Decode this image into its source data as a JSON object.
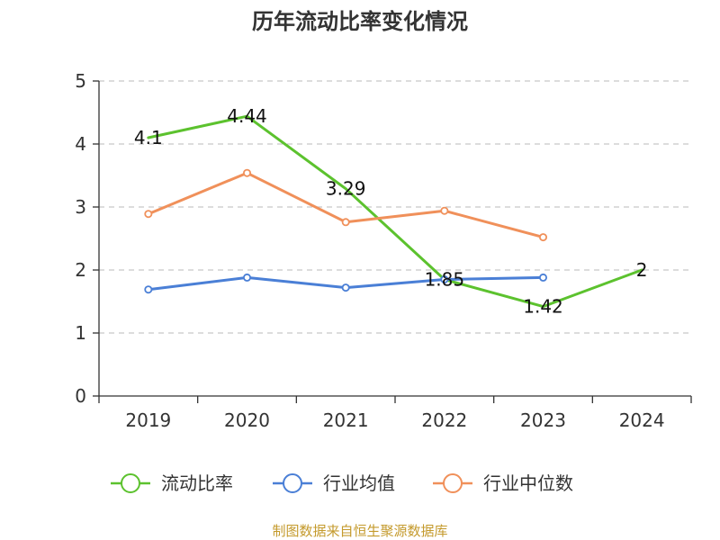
{
  "chart_data": {
    "type": "line",
    "title": "历年流动比率变化情况",
    "categories": [
      "2019",
      "2020",
      "2021",
      "2022",
      "2023",
      "2024"
    ],
    "ylim": [
      0,
      5
    ],
    "yticks": [
      0,
      1,
      2,
      3,
      4,
      5
    ],
    "xlabel": "",
    "ylabel": "",
    "grid": true,
    "legend_position": "bottom",
    "series": [
      {
        "name": "流动比率",
        "color": "#5cc22e",
        "values": [
          4.1,
          4.44,
          3.29,
          1.85,
          1.42,
          2
        ],
        "labels": [
          "4.1",
          "4.44",
          "3.29",
          "1.85",
          "1.42",
          "2"
        ],
        "show_markers": false,
        "show_labels": true
      },
      {
        "name": "行业均值",
        "color": "#4a7fd6",
        "values": [
          1.69,
          1.88,
          1.72,
          1.85,
          1.88,
          null
        ],
        "show_markers": true,
        "show_labels": false
      },
      {
        "name": "行业中位数",
        "color": "#f0905a",
        "values": [
          2.89,
          3.54,
          2.76,
          2.94,
          2.52,
          null
        ],
        "show_markers": true,
        "show_labels": false
      }
    ]
  },
  "source": "制图数据来自恒生聚源数据库"
}
